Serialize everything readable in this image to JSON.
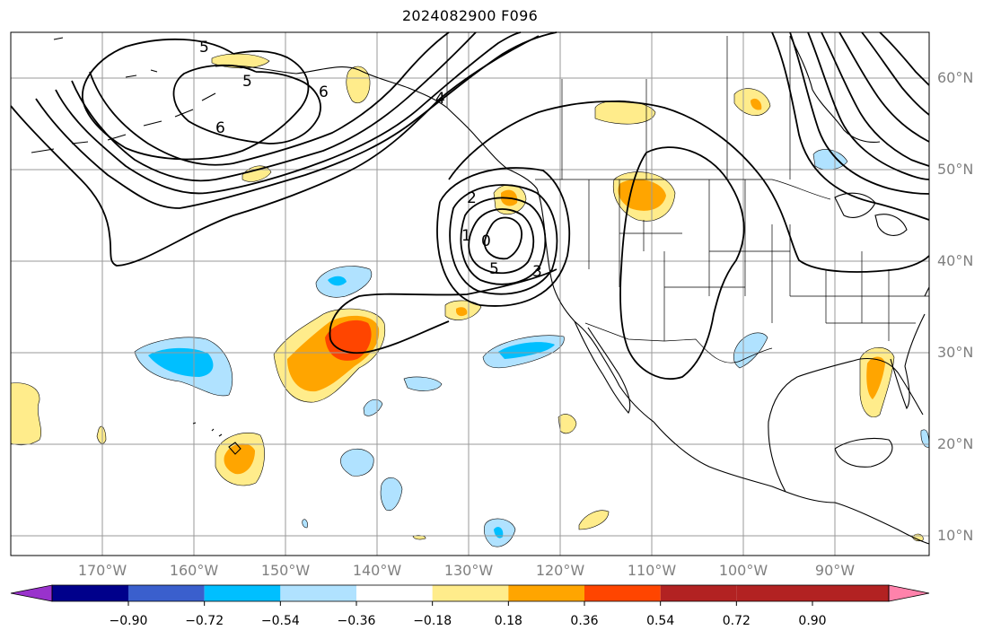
{
  "title": "2024082900 F096",
  "lat_labels": [
    "60°N",
    "50°N",
    "40°N",
    "30°N",
    "20°N",
    "10°N"
  ],
  "lon_labels": [
    "170°W",
    "160°W",
    "150°W",
    "140°W",
    "130°W",
    "120°W",
    "110°W",
    "100°W",
    "90°W"
  ],
  "contour_labels": [
    "5",
    "5",
    "6",
    "6",
    "4",
    "2",
    "1",
    "0",
    "5",
    "3"
  ],
  "colorbar": {
    "ticks": [
      "−0.90",
      "−0.72",
      "−0.54",
      "−0.36",
      "−0.18",
      "0.18",
      "0.36",
      "0.54",
      "0.72",
      "0.90"
    ],
    "colors": [
      "#9932cc",
      "#00008b",
      "#3a5fcd",
      "#00bfff",
      "#b0e2ff",
      "#ffffff",
      "#ffec8b",
      "#ffa500",
      "#ff4500",
      "#b22222",
      "#ff82ab"
    ]
  }
}
